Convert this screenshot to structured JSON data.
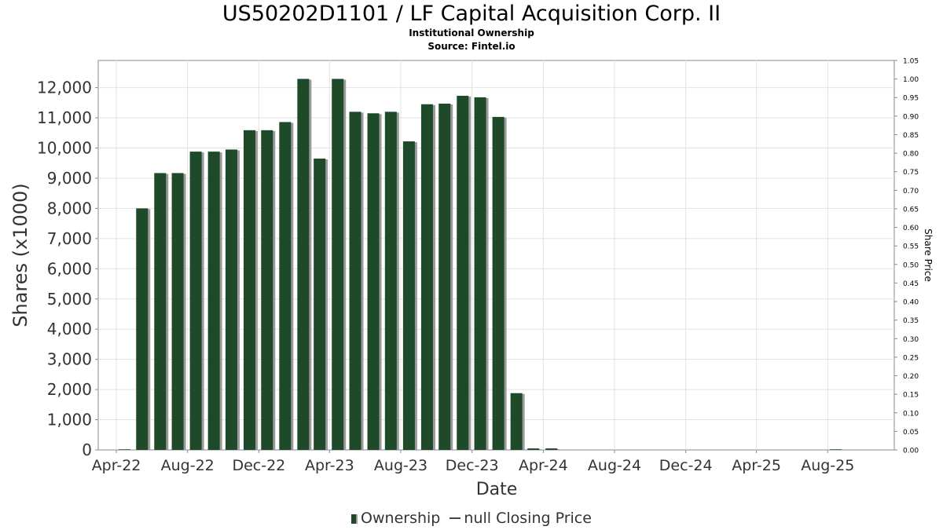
{
  "chart_data": {
    "type": "bar",
    "title": "US50202D1101 / LF Capital Acquisition Corp. II",
    "subtitle": "Institutional Ownership",
    "source": "Source: Fintel.io",
    "xlabel": "Date",
    "ylabel": "Shares (x1000)",
    "y2label": "Share Price",
    "ylim": [
      0,
      12900
    ],
    "y2lim": [
      0,
      1.05
    ],
    "yticks": [
      0,
      1000,
      2000,
      3000,
      4000,
      5000,
      6000,
      7000,
      8000,
      9000,
      10000,
      11000,
      12000
    ],
    "ytick_labels": [
      "0",
      "1,000",
      "2,000",
      "3,000",
      "4,000",
      "5,000",
      "6,000",
      "7,000",
      "8,000",
      "9,000",
      "10,000",
      "11,000",
      "12,000"
    ],
    "y2ticks": [
      "0.00",
      "0.05",
      "0.10",
      "0.15",
      "0.20",
      "0.25",
      "0.30",
      "0.35",
      "0.40",
      "0.45",
      "0.50",
      "0.55",
      "0.60",
      "0.65",
      "0.70",
      "0.75",
      "0.80",
      "0.85",
      "0.90",
      "0.95",
      "1.00",
      "1.05"
    ],
    "xlim": [
      "2022-03-01",
      "2025-11-23"
    ],
    "xticks": [
      {
        "date": "2022-04-01",
        "label": "Apr-22"
      },
      {
        "date": "2022-08-01",
        "label": "Aug-22"
      },
      {
        "date": "2022-12-01",
        "label": "Dec-22"
      },
      {
        "date": "2023-04-01",
        "label": "Apr-23"
      },
      {
        "date": "2023-08-01",
        "label": "Aug-23"
      },
      {
        "date": "2023-12-01",
        "label": "Dec-23"
      },
      {
        "date": "2024-04-01",
        "label": "Apr-24"
      },
      {
        "date": "2024-08-01",
        "label": "Aug-24"
      },
      {
        "date": "2024-12-01",
        "label": "Dec-24"
      },
      {
        "date": "2025-04-01",
        "label": "Apr-25"
      },
      {
        "date": "2025-08-01",
        "label": "Aug-25"
      }
    ],
    "grid": true,
    "legend_position": "bottom",
    "series": [
      {
        "name": "Ownership",
        "color": "#1f4a2a",
        "points": [
          {
            "date": "2022-04-15",
            "value": 20
          },
          {
            "date": "2022-05-15",
            "value": 8000
          },
          {
            "date": "2022-06-15",
            "value": 9170
          },
          {
            "date": "2022-07-15",
            "value": 9170
          },
          {
            "date": "2022-08-15",
            "value": 9880
          },
          {
            "date": "2022-09-15",
            "value": 9880
          },
          {
            "date": "2022-10-15",
            "value": 9950
          },
          {
            "date": "2022-11-15",
            "value": 10590
          },
          {
            "date": "2022-12-15",
            "value": 10590
          },
          {
            "date": "2023-01-15",
            "value": 10860
          },
          {
            "date": "2023-02-15",
            "value": 12290
          },
          {
            "date": "2023-03-15",
            "value": 9650
          },
          {
            "date": "2023-04-15",
            "value": 12290
          },
          {
            "date": "2023-05-15",
            "value": 11200
          },
          {
            "date": "2023-06-15",
            "value": 11150
          },
          {
            "date": "2023-07-15",
            "value": 11200
          },
          {
            "date": "2023-08-15",
            "value": 10220
          },
          {
            "date": "2023-09-15",
            "value": 11450
          },
          {
            "date": "2023-10-15",
            "value": 11470
          },
          {
            "date": "2023-11-15",
            "value": 11730
          },
          {
            "date": "2023-12-15",
            "value": 11680
          },
          {
            "date": "2024-01-15",
            "value": 11030
          },
          {
            "date": "2024-02-15",
            "value": 1880
          },
          {
            "date": "2024-03-15",
            "value": 50
          },
          {
            "date": "2024-04-15",
            "value": 50
          },
          {
            "date": "2025-08-15",
            "value": 20
          }
        ]
      },
      {
        "name": "null Closing Price",
        "color": "#444444",
        "points": []
      }
    ]
  }
}
